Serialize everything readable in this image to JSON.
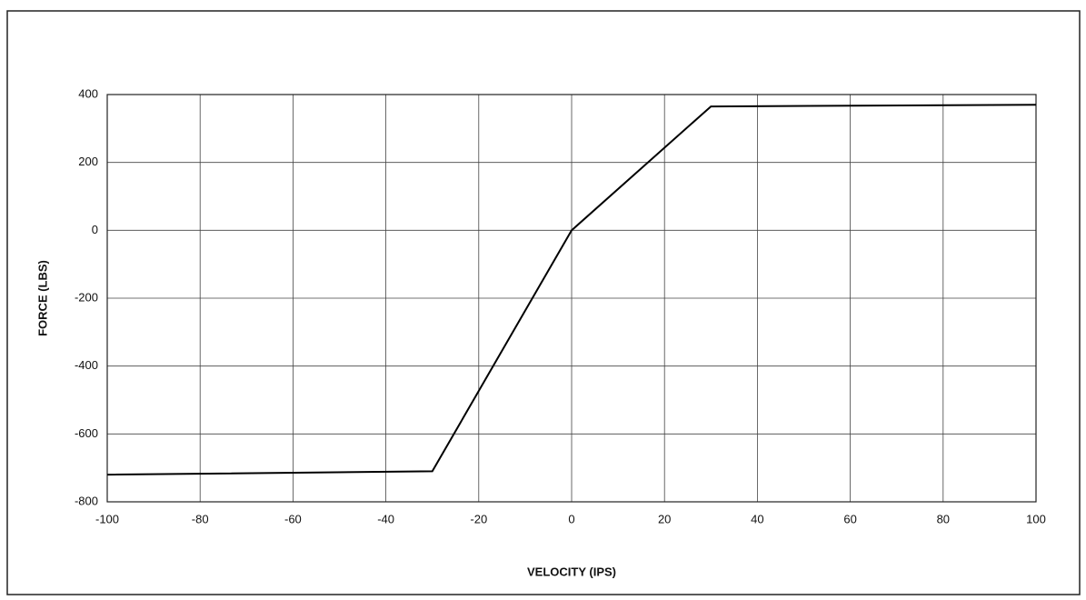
{
  "chart_data": {
    "type": "line",
    "x_label": "VELOCITY (IPS)",
    "y_label": "FORCE (LBS)",
    "x": [
      -100,
      -30,
      0,
      30,
      100
    ],
    "values": [
      -720,
      -710,
      0,
      365,
      370
    ],
    "color": "#000000",
    "xlim": [
      -100,
      100
    ],
    "xticks": [
      -100,
      -80,
      -60,
      -40,
      -20,
      0,
      20,
      40,
      60,
      80,
      100
    ],
    "ylim": [
      -800,
      400
    ],
    "yticks": [
      -800,
      -600,
      -400,
      -200,
      0,
      200,
      400
    ],
    "grid": true
  }
}
